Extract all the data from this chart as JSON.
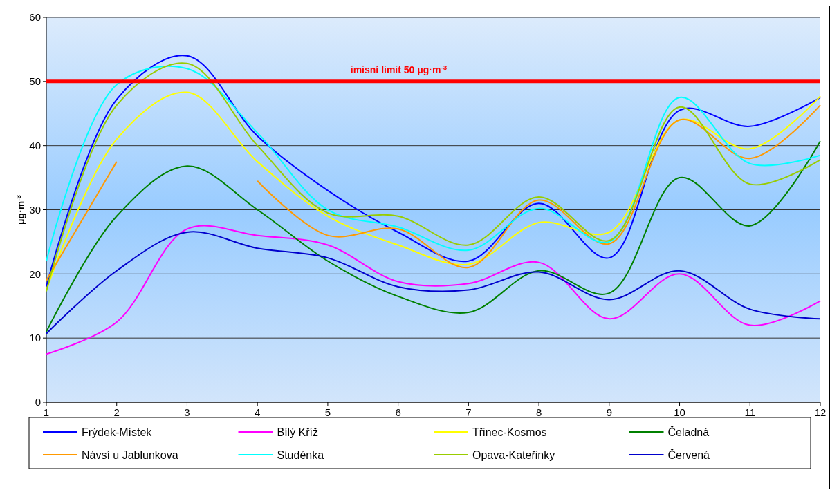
{
  "chart_data": {
    "type": "line",
    "ylabel": "μg·m$^{-3}$",
    "x": [
      1,
      2,
      3,
      4,
      5,
      6,
      7,
      8,
      9,
      10,
      11,
      12
    ],
    "xlim": [
      1,
      12
    ],
    "xticks": [
      1,
      2,
      3,
      4,
      5,
      6,
      7,
      8,
      9,
      10,
      11,
      12
    ],
    "ylim": [
      0,
      60
    ],
    "yticks": [
      0,
      10,
      20,
      30,
      40,
      50,
      60
    ],
    "grid": "y",
    "legend": "bottom",
    "marker": "none",
    "line_style": "solid",
    "ref_lines": [
      {
        "axis": "y",
        "value": 50,
        "label": "imisní limit 50  μg·m$^{-3}$",
        "color": "#ff0000"
      }
    ],
    "series": [
      {
        "name": "Frýdek-Místek",
        "color": "#0000ff",
        "values": [
          18,
          47.2,
          54,
          41.5,
          33,
          26.5,
          22,
          31,
          22.5,
          45.5,
          43,
          47.5
        ]
      },
      {
        "name": "Bílý Kříž",
        "color": "#ff00ff",
        "values": [
          7.5,
          12.5,
          27,
          26,
          24.5,
          18.8,
          18.5,
          21.8,
          13,
          20,
          12,
          15.8
        ]
      },
      {
        "name": "Třinec-Kosmos",
        "color": "#ffff00",
        "values": [
          17.5,
          41,
          48.3,
          37.5,
          29,
          24.5,
          21.5,
          28,
          26.5,
          44,
          39.5,
          47.7
        ]
      },
      {
        "name": "Čeladná",
        "color": "#008000",
        "values": [
          11,
          29,
          36.8,
          30,
          22,
          16.5,
          14,
          20.5,
          17,
          35,
          27.5,
          40.7
        ]
      },
      {
        "name": "Návsí u Jablunkova",
        "color": "#ff9900",
        "values": [
          19,
          37.5,
          null,
          34.5,
          26,
          27,
          21,
          31.5,
          24.7,
          44,
          38,
          46.3
        ]
      },
      {
        "name": "Studénka",
        "color": "#00ffff",
        "values": [
          22,
          49.5,
          52,
          42,
          30,
          27.3,
          23.7,
          30.2,
          25,
          47.5,
          37.2,
          38.5
        ]
      },
      {
        "name": "Opava-Kateřinky",
        "color": "#99cc00",
        "values": [
          17.3,
          46.3,
          52.8,
          40,
          29.5,
          29,
          24.5,
          32,
          25.2,
          46,
          34,
          37.8
        ]
      },
      {
        "name": "Červená",
        "color": "#0000cc",
        "values": [
          10.7,
          20.5,
          26.5,
          24,
          22.5,
          18,
          17.5,
          20.3,
          16,
          20.5,
          14.5,
          13
        ]
      }
    ]
  }
}
